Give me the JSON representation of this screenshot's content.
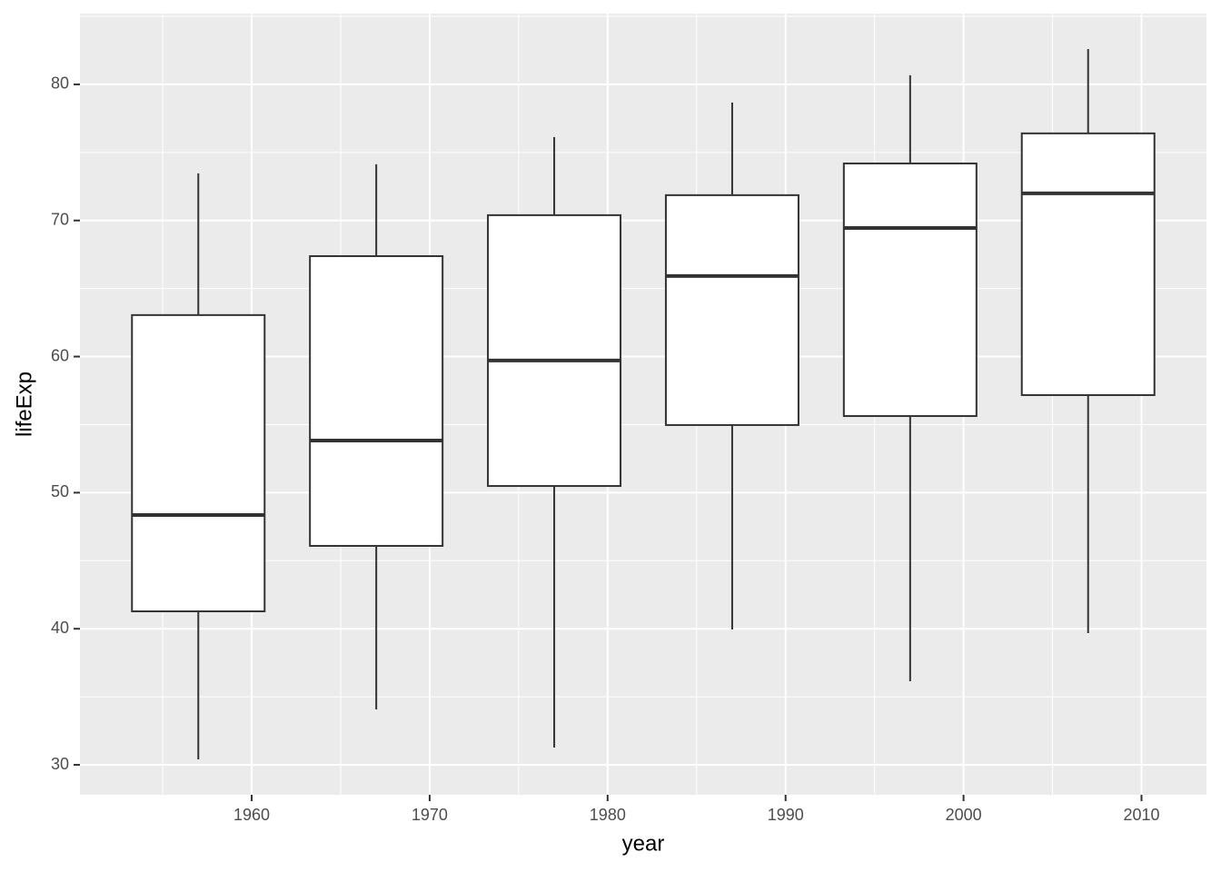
{
  "chart_data": {
    "type": "boxplot",
    "x_label": "year",
    "y_label": "lifeExp",
    "x": [
      1957,
      1967,
      1977,
      1987,
      1997,
      2007
    ],
    "whisker_low": [
      30.4,
      34.07,
      31.27,
      39.95,
      36.14,
      39.68
    ],
    "q1": [
      41.28,
      46.09,
      50.49,
      54.97,
      55.63,
      57.17
    ],
    "median": [
      48.36,
      53.83,
      59.71,
      65.92,
      69.45,
      71.99
    ],
    "q3": [
      63.05,
      67.38,
      70.39,
      71.86,
      74.19,
      76.4
    ],
    "whisker_high": [
      73.46,
      74.13,
      76.13,
      78.67,
      80.67,
      82.6
    ],
    "xlim": [
      1950.35,
      2013.65
    ],
    "xticks": [
      1960,
      1970,
      1980,
      1990,
      2000,
      2010
    ],
    "ylim": [
      27.8,
      85.2
    ],
    "yticks": [
      30,
      40,
      50,
      60,
      70,
      80
    ],
    "grid": true,
    "panel_color": "#ebebeb",
    "box_fill": "#ffffff",
    "line_color": "#333333"
  }
}
